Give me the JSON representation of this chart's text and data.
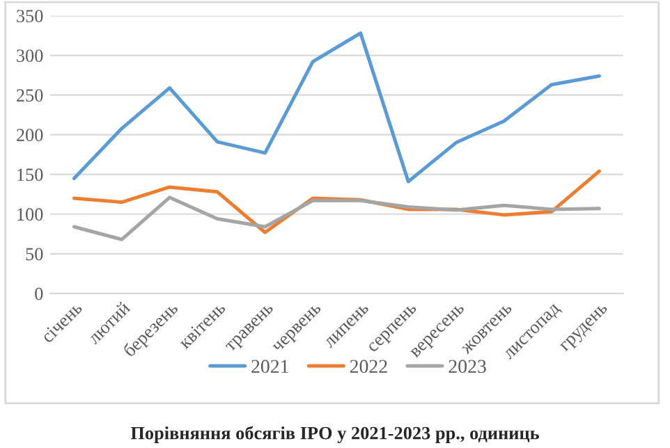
{
  "chart_data": {
    "type": "line",
    "title": "Порівняння обсягів IPO у 2021-2023 рр., одиниць",
    "categories": [
      "січень",
      "лютий",
      "березень",
      "квітень",
      "травень",
      "червень",
      "липень",
      "серпень",
      "вересень",
      "жовтень",
      "листопад",
      "грудень"
    ],
    "series": [
      {
        "name": "2021",
        "color": "#5b9bd5",
        "values": [
          145,
          208,
          259,
          191,
          177,
          292,
          328,
          141,
          190,
          217,
          263,
          274
        ]
      },
      {
        "name": "2022",
        "color": "#ed7d31",
        "values": [
          120,
          115,
          134,
          128,
          77,
          120,
          118,
          106,
          106,
          99,
          103,
          154
        ]
      },
      {
        "name": "2023",
        "color": "#a5a5a5",
        "values": [
          84,
          68,
          121,
          94,
          84,
          117,
          117,
          109,
          105,
          111,
          106,
          107
        ]
      }
    ],
    "ylim": [
      0,
      350
    ],
    "yticks": [
      0,
      50,
      100,
      150,
      200,
      250,
      300,
      350
    ],
    "grid": "y",
    "legend": "bottom",
    "marker": "none",
    "line_style": "solid"
  }
}
